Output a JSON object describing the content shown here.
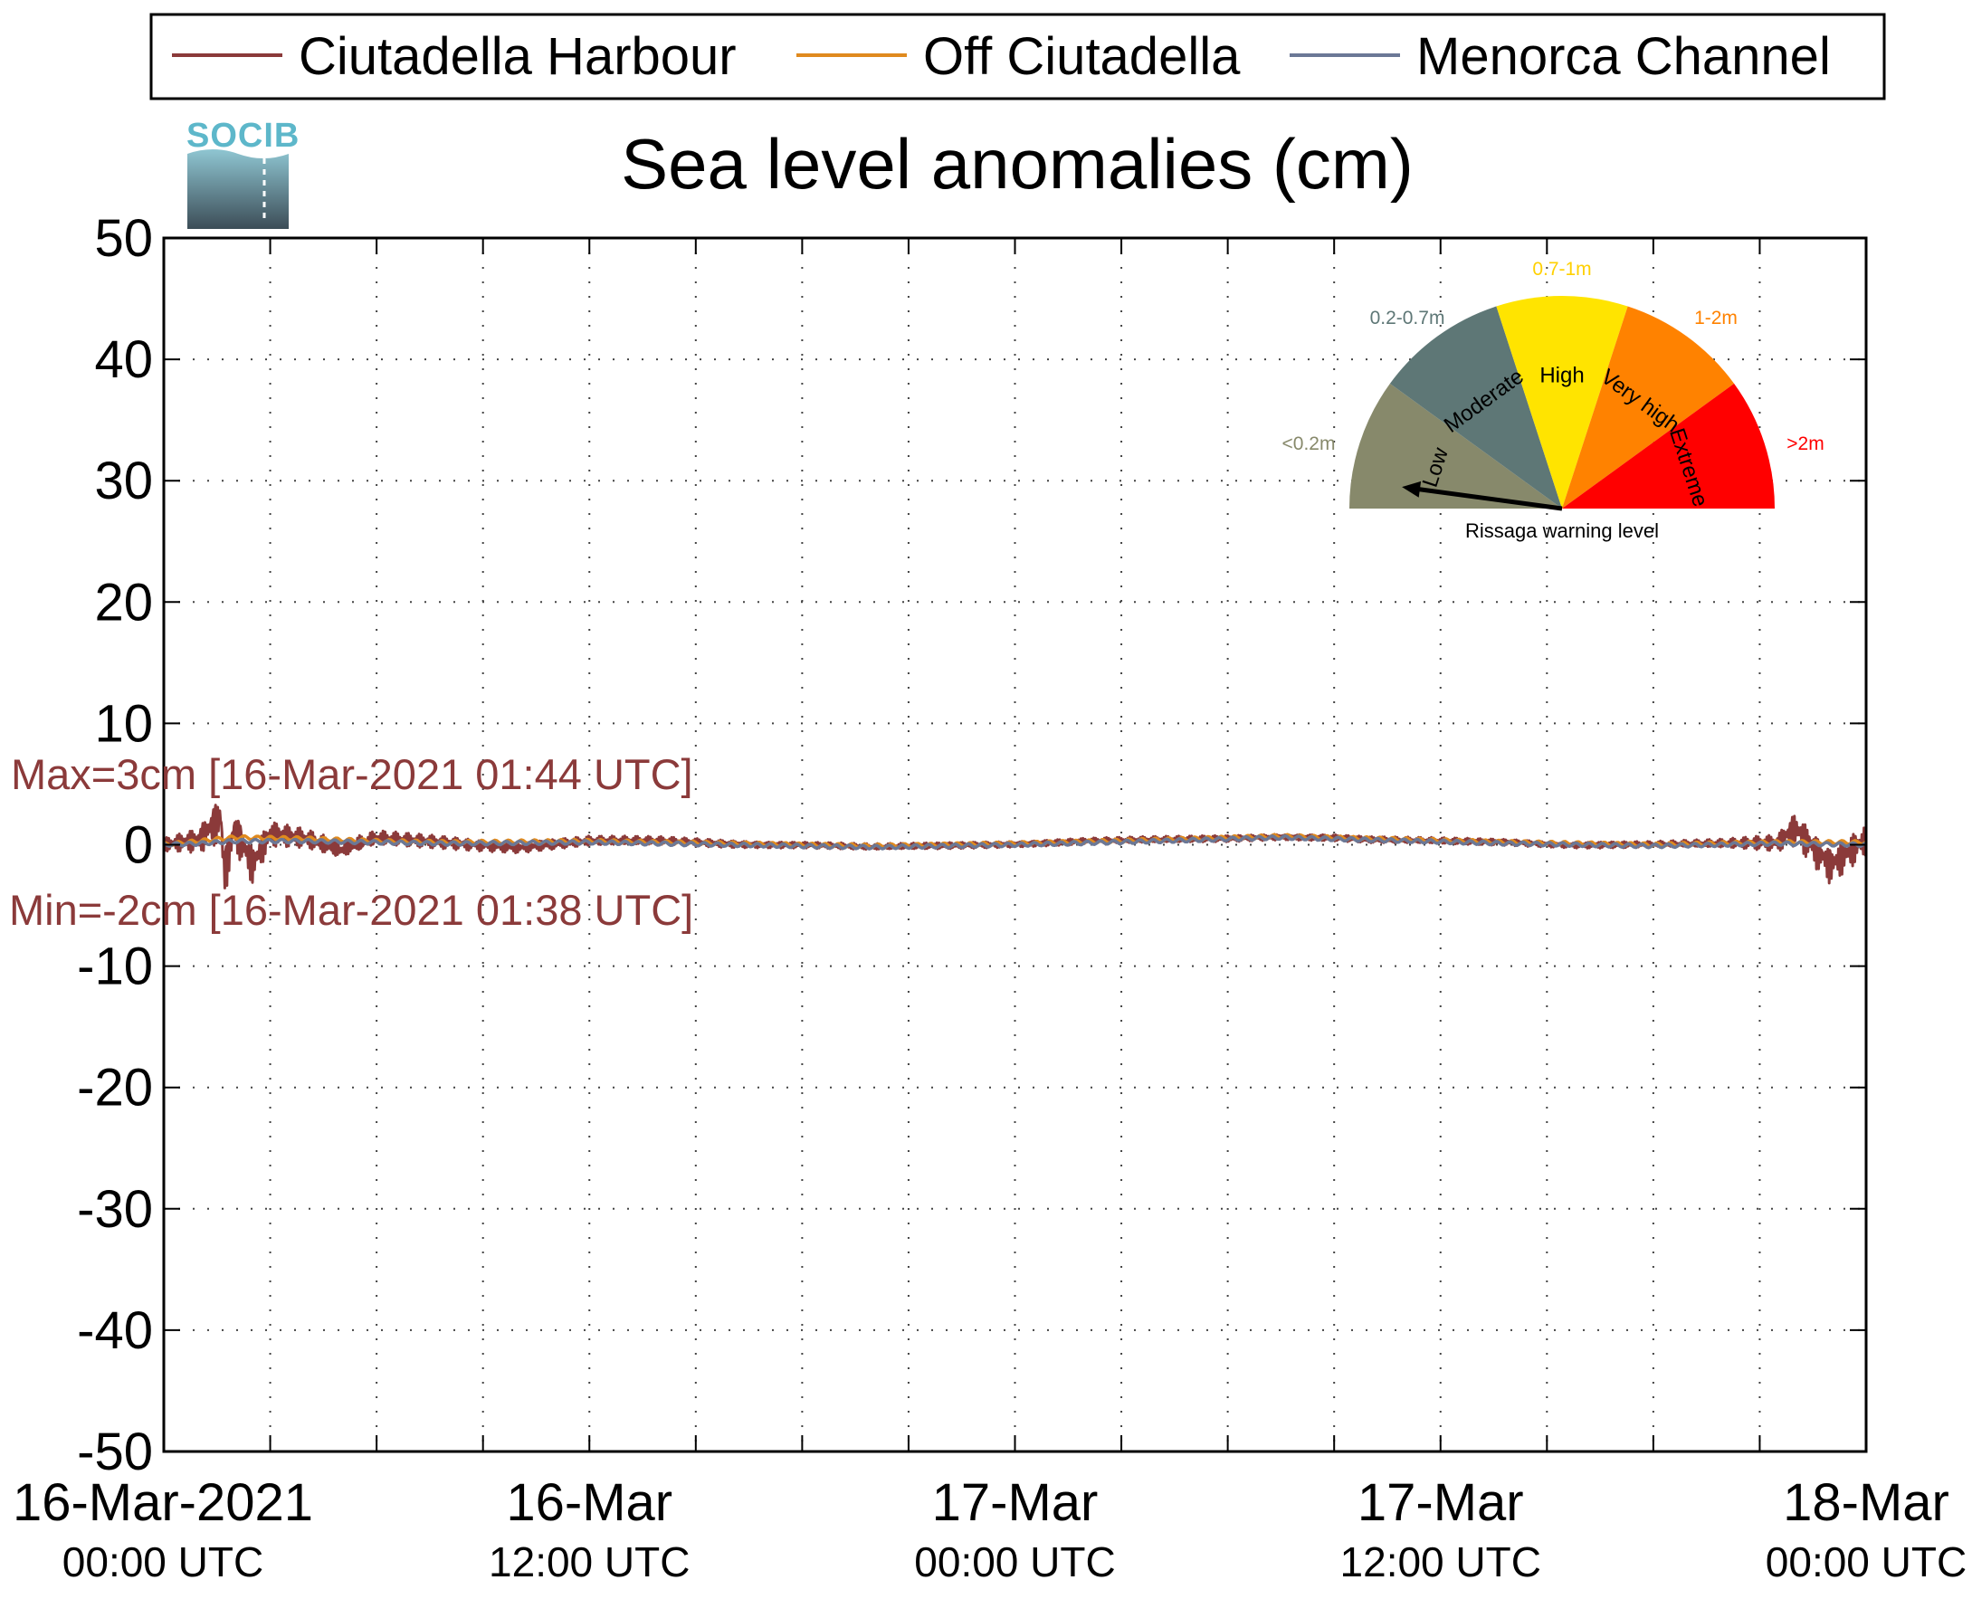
{
  "logo": {
    "text": "SOCIB"
  },
  "chart_data": {
    "type": "line",
    "title": "Sea level anomalies (cm)",
    "xlabel": "",
    "ylabel": "",
    "ylim": [
      -50,
      50
    ],
    "yticks": [
      50,
      40,
      30,
      20,
      10,
      0,
      -10,
      -20,
      -30,
      -40,
      -50
    ],
    "xlim_hours": [
      0,
      48
    ],
    "xtick_labels": [
      {
        "hour": 0,
        "date": "16-Mar-2021",
        "time": "00:00 UTC"
      },
      {
        "hour": 12,
        "date": "16-Mar",
        "time": "12:00 UTC"
      },
      {
        "hour": 24,
        "date": "17-Mar",
        "time": "00:00 UTC"
      },
      {
        "hour": 36,
        "date": "17-Mar",
        "time": "12:00 UTC"
      },
      {
        "hour": 48,
        "date": "18-Mar",
        "time": "00:00 UTC"
      }
    ],
    "minor_gridlines_hours": [
      3,
      6,
      9,
      15,
      18,
      21,
      27,
      30,
      33,
      39,
      42,
      45
    ],
    "grid": true,
    "legend_placement": "top",
    "series": [
      {
        "name": "Ciutadella Harbour",
        "color": "#8b3a3a",
        "x_hours": [
          0,
          1,
          1.6,
          1.7,
          2,
          2.5,
          3,
          4,
          5,
          6,
          8,
          10,
          12,
          14,
          16,
          18,
          20,
          22,
          24,
          26,
          28,
          30,
          31.5,
          33,
          34,
          36,
          38,
          40,
          42,
          44,
          45.5,
          46,
          47,
          48
        ],
        "values": [
          0,
          0.5,
          2.5,
          -2,
          1.5,
          -1.5,
          1,
          0.5,
          -0.5,
          0.5,
          0.2,
          -0.2,
          0.3,
          0.3,
          0.1,
          0,
          -0.2,
          -0.1,
          0.1,
          0.3,
          0.4,
          0.5,
          0.7,
          0.6,
          0.4,
          0.3,
          0.2,
          0,
          0,
          0.1,
          0.2,
          1.5,
          -1.5,
          0.5
        ],
        "oscillation_amplitude": [
          0.6,
          1.2,
          2.4,
          2.4,
          2.0,
          1.8,
          1.2,
          0.9,
          0.8,
          0.7,
          0.6,
          0.5,
          0.45,
          0.4,
          0.35,
          0.3,
          0.3,
          0.3,
          0.3,
          0.3,
          0.3,
          0.3,
          0.3,
          0.3,
          0.3,
          0.3,
          0.3,
          0.3,
          0.3,
          0.4,
          0.8,
          1.6,
          1.8,
          1.4
        ]
      },
      {
        "name": "Off Ciutadella",
        "color": "#e08a1e",
        "x_hours": [
          0,
          1,
          2,
          4,
          6,
          8,
          12,
          16,
          20,
          24,
          28,
          31.5,
          34,
          38,
          42,
          45.5,
          48
        ],
        "values": [
          0,
          0.3,
          0.6,
          0.5,
          0.3,
          0.2,
          0.3,
          0.1,
          -0.1,
          0.1,
          0.4,
          0.7,
          0.5,
          0.2,
          0,
          0.2,
          0.2
        ]
      },
      {
        "name": "Menorca Channel",
        "color": "#6b7896",
        "x_hours": [
          0,
          1,
          2,
          4,
          6,
          8,
          12,
          16,
          20,
          24,
          28,
          31.5,
          34,
          38,
          42,
          45.5,
          48
        ],
        "values": [
          0,
          0.1,
          0.3,
          0.3,
          0.2,
          0.1,
          0.2,
          0,
          -0.2,
          0,
          0.3,
          0.6,
          0.4,
          0.1,
          -0.1,
          0.1,
          0
        ]
      }
    ],
    "annotations": {
      "max": {
        "text": "Max=3cm [16-Mar-2021 01:44 UTC]",
        "value": 3,
        "hour": 1.73
      },
      "min": {
        "text": "Min=-2cm [16-Mar-2021 01:38 UTC]",
        "value": -2,
        "hour": 1.63
      }
    },
    "gauge": {
      "title": "Rissaga warning level",
      "needle_level": "Low",
      "segments": [
        {
          "name": "Low",
          "range": "<0.2m",
          "color": "#87896b",
          "label_color": "#87896b"
        },
        {
          "name": "Moderate",
          "range": "0.2-0.7m",
          "color": "#5e7776",
          "label_color": "#5e7776"
        },
        {
          "name": "High",
          "range": "0.7-1m",
          "color": "#ffe400",
          "label_color": "#ffd000"
        },
        {
          "name": "Very high",
          "range": "1-2m",
          "color": "#ff8200",
          "label_color": "#ff8200"
        },
        {
          "name": "Extreme",
          "range": ">2m",
          "color": "#ff0000",
          "label_color": "#ff0000"
        }
      ]
    }
  }
}
